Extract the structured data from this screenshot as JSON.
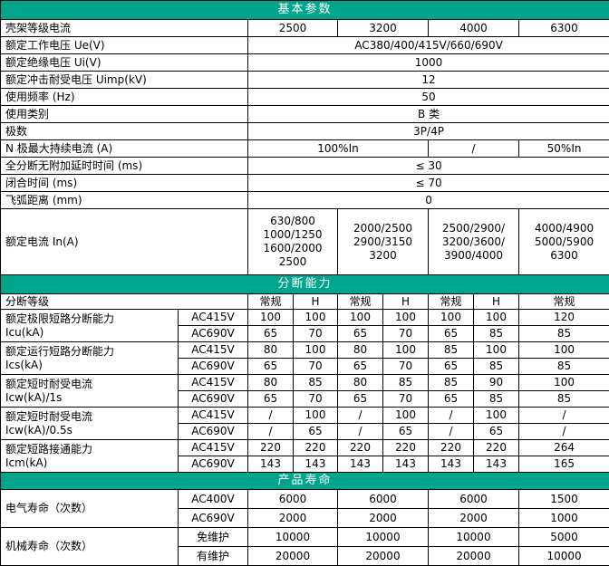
{
  "colors": {
    "section_header_bg": "#00A68C",
    "section_header_text": "#FFFFFF",
    "border": "#000000",
    "text": "#000000",
    "background": "#FFFFFF"
  },
  "basic": {
    "title": "基本参数",
    "rows": [
      {
        "label": "壳架等级电流",
        "values": [
          "2500",
          "3200",
          "4000",
          "6300"
        ],
        "spans": [
          1,
          1,
          1,
          1
        ]
      },
      {
        "label": "额定工作电压 Ue(V)",
        "values": [
          "AC380/400/415V/660/690V"
        ],
        "spans": [
          4
        ]
      },
      {
        "label": "额定绝缘电压 Ui(V)",
        "values": [
          "1000"
        ],
        "spans": [
          4
        ]
      },
      {
        "label": "额定冲击耐受电压 Uimp(kV)",
        "values": [
          "12"
        ],
        "spans": [
          4
        ]
      },
      {
        "label": "使用频率 (Hz)",
        "values": [
          "50"
        ],
        "spans": [
          4
        ]
      },
      {
        "label": "使用类别",
        "values": [
          "B 类"
        ],
        "spans": [
          4
        ]
      },
      {
        "label": "极数",
        "values": [
          "3P/4P"
        ],
        "spans": [
          4
        ]
      },
      {
        "label": "N 极最大持续电流 (A)",
        "values": [
          "100%In",
          "/",
          "50%In"
        ],
        "spans": [
          2,
          1,
          1
        ]
      },
      {
        "label": "全分断无附加延时时间 (ms)",
        "values": [
          "≤ 30"
        ],
        "spans": [
          4
        ]
      },
      {
        "label": "闭合时间 (ms)",
        "values": [
          "≤ 70"
        ],
        "spans": [
          4
        ]
      },
      {
        "label": "飞弧距离 (mm)",
        "values": [
          "0"
        ],
        "spans": [
          4
        ]
      },
      {
        "label": "额定电流 In(A)",
        "values": [
          "630/800\n1000/1250\n1600/2000\n2500",
          "2000/2500\n2900/3150\n3200",
          "2500/2900/\n3200/3600/\n3900/4000",
          "4000/4900\n5000/5900\n6300"
        ],
        "spans": [
          1,
          1,
          1,
          1
        ],
        "tall": true
      }
    ]
  },
  "breaking": {
    "title": "分断能力",
    "grade_label": "分断等级",
    "grade_cols": [
      "常规",
      "H",
      "常规",
      "H",
      "常规",
      "H",
      "常规"
    ],
    "groups": [
      {
        "label": "额定极限短路分断能力\nIcu(kA)",
        "rows": [
          {
            "sub": "AC415V",
            "values": [
              "100",
              "100",
              "100",
              "100",
              "100",
              "100",
              "120"
            ]
          },
          {
            "sub": "AC690V",
            "values": [
              "65",
              "70",
              "65",
              "70",
              "65",
              "85",
              "85"
            ]
          }
        ]
      },
      {
        "label": "额定运行短路分断能力\nIcs(kA)",
        "rows": [
          {
            "sub": "AC415V",
            "values": [
              "80",
              "100",
              "80",
              "100",
              "85",
              "100",
              "100"
            ]
          },
          {
            "sub": "AC690V",
            "values": [
              "65",
              "70",
              "65",
              "70",
              "65",
              "85",
              "85"
            ]
          }
        ]
      },
      {
        "label": "额定短时耐受电流\nIcw(kA)/1s",
        "rows": [
          {
            "sub": "AC415V",
            "values": [
              "80",
              "85",
              "80",
              "85",
              "85",
              "90",
              "100"
            ]
          },
          {
            "sub": "AC690V",
            "values": [
              "65",
              "70",
              "65",
              "70",
              "65",
              "85",
              "85"
            ]
          }
        ]
      },
      {
        "label": "额定短时耐受电流\nIcw(kA)/0.5s",
        "rows": [
          {
            "sub": "AC415V",
            "values": [
              "/",
              "100",
              "/",
              "100",
              "/",
              "100",
              "/"
            ]
          },
          {
            "sub": "AC690V",
            "values": [
              "/",
              "65",
              "/",
              "65",
              "/",
              "65",
              "/"
            ]
          }
        ]
      },
      {
        "label": "额定短路接通能力\nIcm(kA)",
        "rows": [
          {
            "sub": "AC415V",
            "values": [
              "220",
              "220",
              "220",
              "220",
              "220",
              "220",
              "264"
            ]
          },
          {
            "sub": "AC690V",
            "values": [
              "143",
              "143",
              "143",
              "143",
              "143",
              "143",
              "165"
            ]
          }
        ]
      }
    ]
  },
  "life": {
    "title": "产品寿命",
    "groups": [
      {
        "label": "电气寿命（次数）",
        "rows": [
          {
            "sub": "AC400V",
            "values": [
              "6000",
              "6000",
              "6000",
              "1500"
            ]
          },
          {
            "sub": "AC690V",
            "values": [
              "2000",
              "2000",
              "2000",
              "1000"
            ]
          }
        ]
      },
      {
        "label": "机械寿命（次数）",
        "rows": [
          {
            "sub": "免维护",
            "values": [
              "10000",
              "10000",
              "10000",
              "5000"
            ]
          },
          {
            "sub": "有维护",
            "values": [
              "20000",
              "20000",
              "20000",
              "10000"
            ]
          }
        ]
      }
    ]
  }
}
